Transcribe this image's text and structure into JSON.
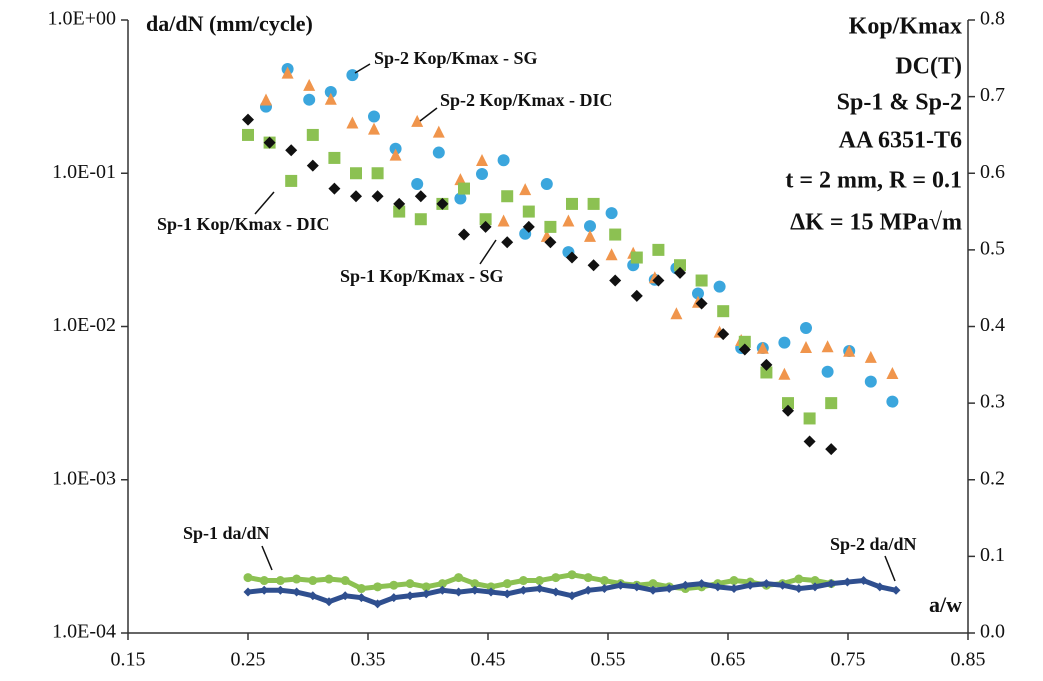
{
  "chart_data": {
    "type": "scatter",
    "y_label": "da/dN (mm/cycle)",
    "x_label": "a/w",
    "annotations": [
      "Kop/Kmax",
      "DC(T)",
      "Sp-1 & Sp-2",
      "AA 6351-T6",
      "t = 2 mm, R = 0.1",
      "ΔK = 15 MPa√m"
    ],
    "xlim": [
      0.15,
      0.85
    ],
    "xticks": [
      0.15,
      0.25,
      0.35,
      0.45,
      0.55,
      0.65,
      0.75,
      0.85
    ],
    "ylog": true,
    "ylim": [
      0.0001,
      1
    ],
    "yticks": [
      {
        "value": 1,
        "label": "1.0E+00"
      },
      {
        "value": 0.1,
        "label": "1.0E-01"
      },
      {
        "value": 0.01,
        "label": "1.0E-02"
      },
      {
        "value": 0.001,
        "label": "1.0E-03"
      },
      {
        "value": 0.0001,
        "label": "1.0E-04"
      }
    ],
    "y2lim": [
      0,
      0.8
    ],
    "y2ticks": [
      {
        "value": 0,
        "label": "0.0"
      },
      0.1,
      0.2,
      0.3,
      0.4,
      0.5,
      0.6,
      0.7,
      0.8
    ],
    "series": [
      {
        "name": "Sp-2 Kop/Kmax - SG",
        "color": "#3ba6dd",
        "marker": "circle",
        "axis": "y2",
        "x": [
          0.265,
          0.283,
          0.301,
          0.319,
          0.337,
          0.355,
          0.373,
          0.391,
          0.409,
          0.427,
          0.445,
          0.463,
          0.481,
          0.499,
          0.517,
          0.535,
          0.553,
          0.571,
          0.589,
          0.607,
          0.625,
          0.643,
          0.661,
          0.679,
          0.697,
          0.715,
          0.733,
          0.751,
          0.769,
          0.787
        ],
        "values": [
          0.687,
          0.736,
          0.696,
          0.706,
          0.728,
          0.674,
          0.632,
          0.586,
          0.627,
          0.567,
          0.599,
          0.617,
          0.521,
          0.586,
          0.497,
          0.531,
          0.548,
          0.48,
          0.461,
          0.476,
          0.443,
          0.452,
          0.372,
          0.372,
          0.379,
          0.398,
          0.341,
          0.368,
          0.328,
          0.302
        ]
      },
      {
        "name": "Sp-2 Kop/Kmax - DIC",
        "color": "#f0954c",
        "marker": "triangle",
        "axis": "y2",
        "x": [
          0.265,
          0.283,
          0.301,
          0.319,
          0.337,
          0.355,
          0.373,
          0.391,
          0.409,
          0.427,
          0.445,
          0.463,
          0.481,
          0.499,
          0.517,
          0.535,
          0.553,
          0.571,
          0.589,
          0.607,
          0.625,
          0.643,
          0.661,
          0.679,
          0.697,
          0.715,
          0.733,
          0.751,
          0.769,
          0.787
        ],
        "values": [
          0.695,
          0.73,
          0.714,
          0.696,
          0.665,
          0.657,
          0.623,
          0.667,
          0.653,
          0.591,
          0.616,
          0.537,
          0.578,
          0.517,
          0.537,
          0.517,
          0.493,
          0.495,
          0.463,
          0.416,
          0.431,
          0.392,
          0.381,
          0.371,
          0.337,
          0.372,
          0.373,
          0.367,
          0.359,
          0.338
        ]
      },
      {
        "name": "Sp-1 Kop/Kmax - DIC",
        "color": "#8cc152",
        "marker": "square",
        "axis": "y2",
        "x": [
          0.25,
          0.268,
          0.286,
          0.304,
          0.322,
          0.34,
          0.358,
          0.376,
          0.394,
          0.412,
          0.43,
          0.448,
          0.466,
          0.484,
          0.502,
          0.52,
          0.538,
          0.556,
          0.574,
          0.592,
          0.61,
          0.628,
          0.646,
          0.664,
          0.682,
          0.7,
          0.718,
          0.736
        ],
        "values": [
          0.65,
          0.64,
          0.59,
          0.65,
          0.62,
          0.6,
          0.6,
          0.55,
          0.54,
          0.56,
          0.58,
          0.54,
          0.57,
          0.55,
          0.53,
          0.56,
          0.56,
          0.52,
          0.49,
          0.5,
          0.48,
          0.46,
          0.42,
          0.38,
          0.34,
          0.3,
          0.28,
          0.3
        ]
      },
      {
        "name": "Sp-1 Kop/Kmax - SG",
        "color": "#111111",
        "marker": "diamond",
        "axis": "y2",
        "x": [
          0.25,
          0.268,
          0.286,
          0.304,
          0.322,
          0.34,
          0.358,
          0.376,
          0.394,
          0.412,
          0.43,
          0.448,
          0.466,
          0.484,
          0.502,
          0.52,
          0.538,
          0.556,
          0.574,
          0.592,
          0.61,
          0.628,
          0.646,
          0.664,
          0.682,
          0.7,
          0.718,
          0.736
        ],
        "values": [
          0.67,
          0.64,
          0.63,
          0.61,
          0.58,
          0.57,
          0.57,
          0.56,
          0.57,
          0.56,
          0.52,
          0.53,
          0.51,
          0.53,
          0.51,
          0.49,
          0.48,
          0.46,
          0.44,
          0.46,
          0.47,
          0.43,
          0.39,
          0.37,
          0.35,
          0.29,
          0.25,
          0.24
        ]
      },
      {
        "name": "Sp-1 da/dN",
        "color": "#8cc152",
        "marker": "circle",
        "line": true,
        "x": [
          0.25,
          0.2635,
          0.277,
          0.2905,
          0.304,
          0.3175,
          0.331,
          0.3445,
          0.358,
          0.3715,
          0.385,
          0.3985,
          0.412,
          0.4255,
          0.439,
          0.4525,
          0.466,
          0.4795,
          0.493,
          0.5065,
          0.52,
          0.5335,
          0.547,
          0.5605,
          0.574,
          0.5875,
          0.601,
          0.6145,
          0.628,
          0.6415,
          0.655,
          0.6685,
          0.682,
          0.6955,
          0.709,
          0.7225,
          0.736
        ],
        "values": [
          0.00023,
          0.00022,
          0.00022,
          0.000225,
          0.00022,
          0.000225,
          0.00022,
          0.000195,
          0.0002,
          0.000205,
          0.00021,
          0.0002,
          0.00021,
          0.00023,
          0.00021,
          0.0002,
          0.00021,
          0.00022,
          0.00022,
          0.00023,
          0.00024,
          0.00023,
          0.00022,
          0.00021,
          0.000205,
          0.00021,
          0.0002,
          0.000195,
          0.0002,
          0.00021,
          0.00022,
          0.000215,
          0.000205,
          0.00021,
          0.000225,
          0.00022,
          0.00021
        ]
      },
      {
        "name": "Sp-2 da/dN",
        "color": "#2f4f8f",
        "marker": "diamond",
        "line": true,
        "x": [
          0.25,
          0.2635,
          0.277,
          0.2905,
          0.304,
          0.3175,
          0.331,
          0.3445,
          0.358,
          0.3715,
          0.385,
          0.3985,
          0.412,
          0.4255,
          0.439,
          0.4525,
          0.466,
          0.4795,
          0.493,
          0.5065,
          0.52,
          0.5335,
          0.547,
          0.5605,
          0.574,
          0.5875,
          0.601,
          0.6145,
          0.628,
          0.6415,
          0.655,
          0.6685,
          0.682,
          0.6955,
          0.709,
          0.7225,
          0.736,
          0.7495,
          0.763,
          0.7765,
          0.79
        ],
        "values": [
          0.000185,
          0.00019,
          0.00019,
          0.000185,
          0.000175,
          0.00016,
          0.000175,
          0.00017,
          0.000155,
          0.00017,
          0.000175,
          0.00018,
          0.00019,
          0.000185,
          0.00019,
          0.000185,
          0.00018,
          0.00019,
          0.000195,
          0.000185,
          0.000175,
          0.00019,
          0.000195,
          0.000205,
          0.0002,
          0.00019,
          0.000195,
          0.000205,
          0.00021,
          0.0002,
          0.000195,
          0.000205,
          0.00021,
          0.000205,
          0.000195,
          0.0002,
          0.00021,
          0.000215,
          0.00022,
          0.0002,
          0.00019
        ]
      }
    ]
  }
}
